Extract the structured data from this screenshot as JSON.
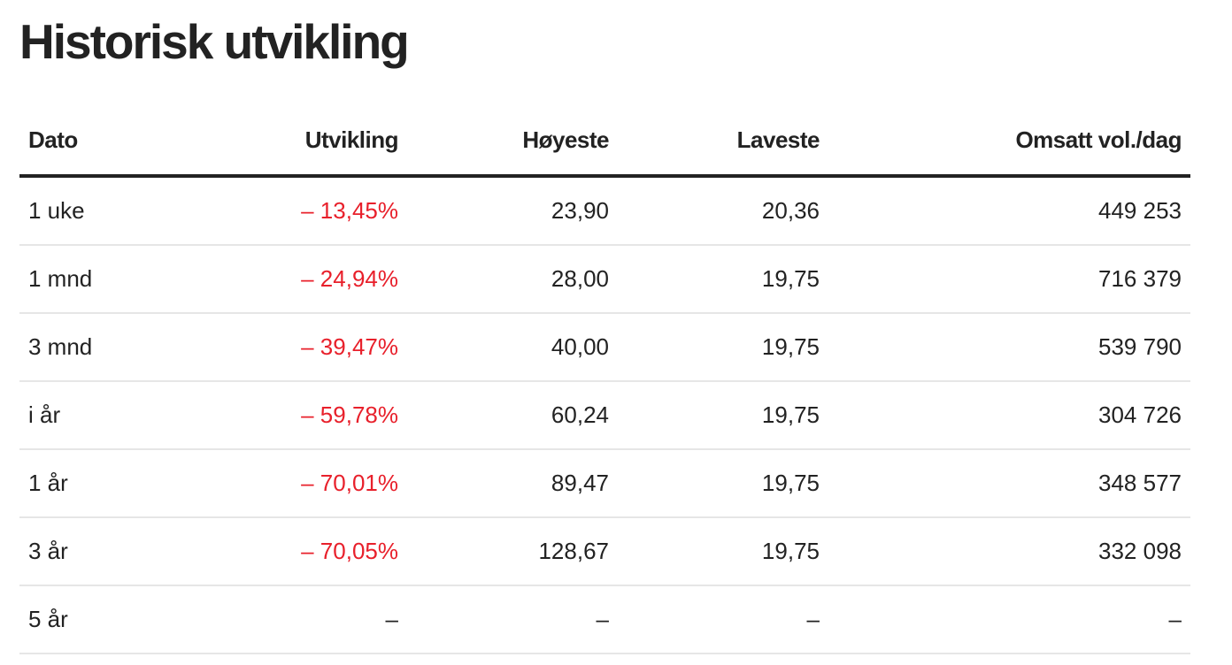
{
  "page": {
    "title": "Historisk utvikling"
  },
  "table": {
    "headers": [
      "Dato",
      "Utvikling",
      "Høyeste",
      "Laveste",
      "Omsatt vol./dag"
    ],
    "rows": [
      [
        "1 uke",
        "– 13,45%",
        "23,90",
        "20,36",
        "449 253"
      ],
      [
        "1 mnd",
        "– 24,94%",
        "28,00",
        "19,75",
        "716 379"
      ],
      [
        "3 mnd",
        "– 39,47%",
        "40,00",
        "19,75",
        "539 790"
      ],
      [
        "i år",
        "– 59,78%",
        "60,24",
        "19,75",
        "304 726"
      ],
      [
        "1 år",
        "– 70,01%",
        "89,47",
        "19,75",
        "348 577"
      ],
      [
        "3 år",
        "– 70,05%",
        "128,67",
        "19,75",
        "332 098"
      ],
      [
        "5 år",
        "–",
        "–",
        "–",
        "–"
      ]
    ]
  },
  "colors": {
    "negative": "#e8202b",
    "text": "#222222",
    "header_rule": "#222222",
    "row_rule": "#e6e6e6"
  }
}
